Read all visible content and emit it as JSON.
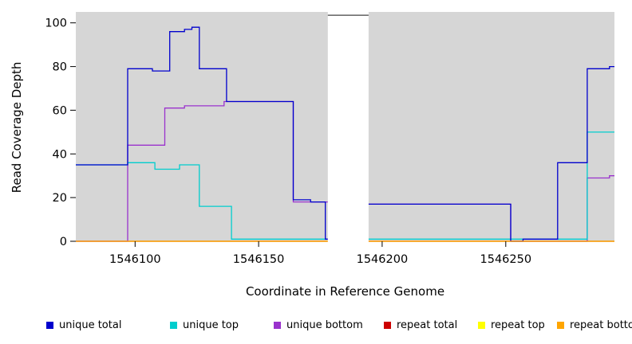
{
  "chart_data": {
    "type": "line",
    "subtype": "step",
    "title": "",
    "xlabel": "Coordinate in Reference Genome",
    "ylabel": "Read Coverage Depth",
    "xlim": [
      1546076,
      1546294
    ],
    "ylim": [
      0,
      105
    ],
    "x_ticks": [
      1546100,
      1546150,
      1546200,
      1546250
    ],
    "y_ticks": [
      0,
      20,
      40,
      60,
      80,
      100
    ],
    "grid": false,
    "plot_background": "#d6d6d6",
    "page_background": "#ffffff",
    "masked_region": {
      "x0": 1546178,
      "x1": 1546194.5,
      "cap_value": 103.5,
      "cap_color": "#404040",
      "fill": "#ffffff"
    },
    "series": [
      {
        "name": "repeat top",
        "color": "#ffff00",
        "points": [
          [
            1546076,
            0
          ]
        ]
      },
      {
        "name": "repeat total",
        "color": "#cd0000",
        "points": [
          [
            1546076,
            0
          ]
        ]
      },
      {
        "name": "unique bottom",
        "color": "#9a32cd",
        "points": [
          [
            1546076,
            0
          ],
          [
            1546097,
            44
          ],
          [
            1546112,
            61
          ],
          [
            1546120,
            62
          ],
          [
            1546136,
            64
          ],
          [
            1546164,
            18
          ],
          [
            1546194,
            17
          ],
          [
            1546252,
            0
          ],
          [
            1546283,
            29
          ],
          [
            1546292,
            30
          ]
        ]
      },
      {
        "name": "unique top",
        "color": "#00cdcd",
        "points": [
          [
            1546076,
            35
          ],
          [
            1546097,
            36
          ],
          [
            1546108,
            33
          ],
          [
            1546118,
            35
          ],
          [
            1546126,
            16
          ],
          [
            1546139,
            1
          ],
          [
            1546283,
            50
          ]
        ]
      },
      {
        "name": "unique total",
        "color": "#0000cd",
        "points": [
          [
            1546076,
            35
          ],
          [
            1546097,
            79
          ],
          [
            1546107,
            78
          ],
          [
            1546114,
            96
          ],
          [
            1546120,
            97
          ],
          [
            1546123,
            98
          ],
          [
            1546126,
            79
          ],
          [
            1546137,
            64
          ],
          [
            1546164,
            19
          ],
          [
            1546171,
            18
          ],
          [
            1546177,
            1
          ],
          [
            1546194,
            17
          ],
          [
            1546252,
            0
          ],
          [
            1546257,
            1
          ],
          [
            1546271,
            36
          ],
          [
            1546283,
            79
          ],
          [
            1546292,
            80
          ]
        ]
      },
      {
        "name": "repeat bottom",
        "color": "#ffa500",
        "points": [
          [
            1546076,
            0
          ]
        ]
      }
    ],
    "legend": {
      "position": "bottom",
      "items": [
        {
          "label": "unique total",
          "color": "#0000cd"
        },
        {
          "label": "unique top",
          "color": "#00cdcd"
        },
        {
          "label": "unique bottom",
          "color": "#9a32cd"
        },
        {
          "label": "repeat total",
          "color": "#cd0000"
        },
        {
          "label": "repeat top",
          "color": "#ffff00"
        },
        {
          "label": "repeat bottom",
          "color": "#ffa500"
        }
      ]
    }
  }
}
